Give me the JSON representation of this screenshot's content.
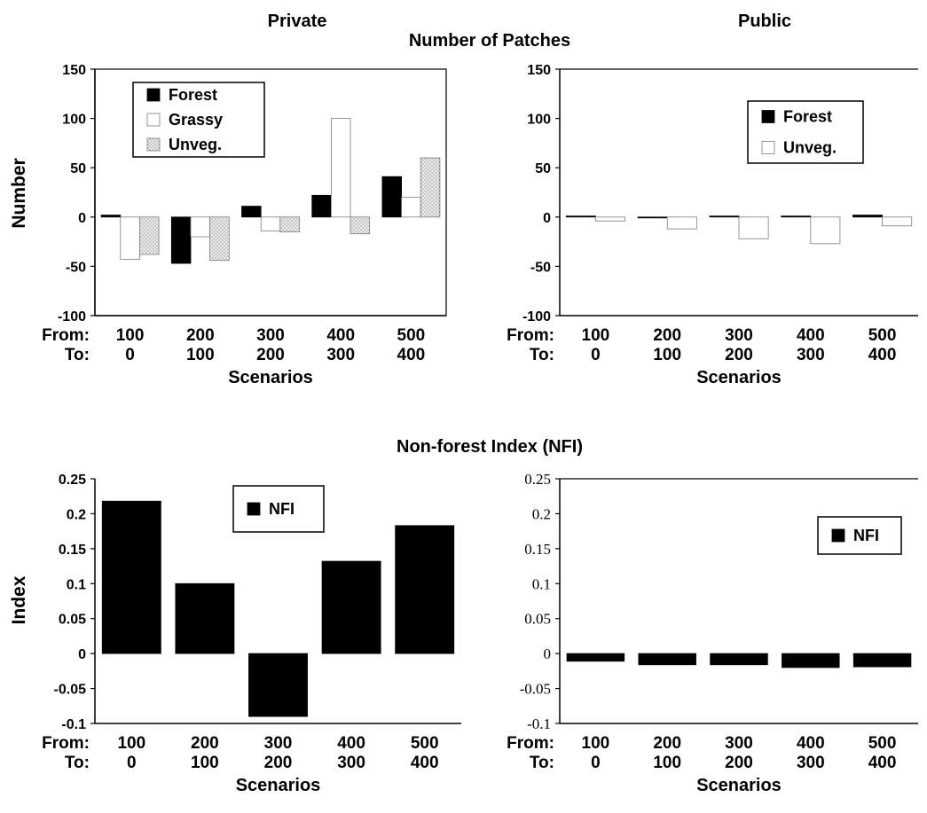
{
  "figure": {
    "top_title": "Number of Patches",
    "bottom_title": "Non-forest Index (NFI)",
    "row_from_label": "From:",
    "row_to_label": "To:"
  },
  "chart_data": [
    {
      "id": "patches-private",
      "type": "bar",
      "title": "Private",
      "ylabel": "Number",
      "xlabel": "Scenarios",
      "ylim": [
        -100,
        150
      ],
      "yticks": [
        -100,
        -50,
        0,
        50,
        100,
        150
      ],
      "categories_from": [
        "100",
        "200",
        "300",
        "400",
        "500"
      ],
      "categories_to": [
        "0",
        "100",
        "200",
        "300",
        "400"
      ],
      "legend_position": "top-left",
      "series": [
        {
          "name": "Forest",
          "color": "#000000",
          "style": "solid",
          "values": [
            2,
            -47,
            11,
            22,
            41
          ]
        },
        {
          "name": "Grassy",
          "color": "#ffffff",
          "style": "outline",
          "values": [
            -43,
            -20,
            -14,
            100,
            20
          ]
        },
        {
          "name": "Unveg.",
          "color": "#d8d8d8",
          "style": "dotted",
          "values": [
            -38,
            -44,
            -15,
            -17,
            60
          ]
        }
      ]
    },
    {
      "id": "patches-public",
      "type": "bar",
      "title": "Public",
      "ylabel": "",
      "xlabel": "Scenarios",
      "ylim": [
        -100,
        150
      ],
      "yticks": [
        -100,
        -50,
        0,
        50,
        100,
        150
      ],
      "categories_from": [
        "100",
        "200",
        "300",
        "400",
        "500"
      ],
      "categories_to": [
        "0",
        "100",
        "200",
        "300",
        "400"
      ],
      "legend_position": "top-right",
      "series": [
        {
          "name": "Forest",
          "color": "#000000",
          "style": "solid",
          "values": [
            1,
            0,
            1,
            1,
            2
          ]
        },
        {
          "name": "Unveg.",
          "color": "#ffffff",
          "style": "outline",
          "values": [
            -4,
            -12,
            -22,
            -27,
            -9
          ]
        }
      ]
    },
    {
      "id": "nfi-private",
      "type": "bar",
      "title": "",
      "ylabel": "Index",
      "xlabel": "Scenarios",
      "ylim": [
        -0.1,
        0.25
      ],
      "yticks": [
        -0.1,
        -0.05,
        0,
        0.05,
        0.1,
        0.15,
        0.2,
        0.25
      ],
      "categories_from": [
        "100",
        "200",
        "300",
        "400",
        "500"
      ],
      "categories_to": [
        "0",
        "100",
        "200",
        "300",
        "400"
      ],
      "legend_position": "top-center",
      "series": [
        {
          "name": "NFI",
          "color": "#000000",
          "style": "solid",
          "values": [
            0.218,
            0.1,
            -0.09,
            0.132,
            0.183
          ]
        }
      ]
    },
    {
      "id": "nfi-public",
      "type": "bar",
      "title": "",
      "ylabel": "",
      "xlabel": "Scenarios",
      "ylim": [
        -0.1,
        0.25
      ],
      "yticks": [
        -0.1,
        -0.05,
        0,
        0.05,
        0.1,
        0.15,
        0.2,
        0.25
      ],
      "categories_from": [
        "100",
        "200",
        "300",
        "400",
        "500"
      ],
      "categories_to": [
        "0",
        "100",
        "200",
        "300",
        "400"
      ],
      "legend_position": "top-right",
      "series": [
        {
          "name": "NFI",
          "color": "#000000",
          "style": "solid",
          "values": [
            -0.011,
            -0.016,
            -0.016,
            -0.02,
            -0.019
          ]
        }
      ]
    }
  ]
}
